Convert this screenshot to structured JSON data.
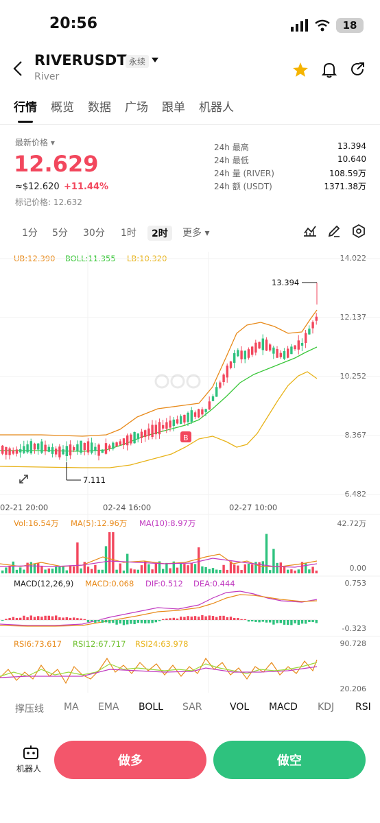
{
  "status": {
    "time": "20:56",
    "battery": "18"
  },
  "header": {
    "title": "RIVERUSDT",
    "tag": "永续",
    "subtitle": "River"
  },
  "tabs": [
    "行情",
    "概览",
    "数据",
    "广场",
    "跟单",
    "机器人"
  ],
  "price": {
    "label": "最新价格",
    "last": "12.629",
    "usd": "≈$12.620",
    "change": "+11.44%",
    "mark": "标记价格: 12.632"
  },
  "stats": [
    {
      "label": "24h  最高",
      "value": "13.394"
    },
    {
      "label": "24h  最低",
      "value": "10.640"
    },
    {
      "label": "24h  量 (RIVER)",
      "value": "108.59万"
    },
    {
      "label": "24h  额 (USDT)",
      "value": "1371.38万"
    }
  ],
  "timeframes": [
    "1分",
    "5分",
    "30分",
    "1时",
    "2时",
    "更多"
  ],
  "active_timeframe": "2时",
  "main_indicators": {
    "ub": "UB:12.390",
    "boll": "BOLL:11.355",
    "lb": "LB:10.320"
  },
  "price_axis": [
    "14.022",
    "12.137",
    "10.252",
    "8.367",
    "6.482"
  ],
  "high_marker": "13.394",
  "low_marker": "7.111",
  "buy_marker": "B",
  "date_labels": [
    "02-21 20:00",
    "02-24 16:00",
    "02-27 10:00"
  ],
  "vol_indicators": {
    "vol": "Vol:16.54万",
    "ma5": "MA(5):12.96万",
    "ma10": "MA(10):8.97万"
  },
  "vol_axis": [
    "42.72万",
    "0.00"
  ],
  "macd_indicators": {
    "params": "MACD(12,26,9)",
    "macd": "MACD:0.068",
    "dif": "DIF:0.512",
    "dea": "DEA:0.444"
  },
  "macd_axis": [
    "0.753",
    "-0.323"
  ],
  "rsi_indicators": {
    "rsi6": "RSI6:73.617",
    "rsi12": "RSI12:67.717",
    "rsi24": "RSI24:63.978"
  },
  "rsi_axis": [
    "90.728",
    "20.206"
  ],
  "indicator_tabs": [
    "撑压线",
    "MA",
    "EMA",
    "BOLL",
    "SAR",
    "VOL",
    "MACD",
    "KDJ",
    "RSI"
  ],
  "actions": {
    "robot": "机器人",
    "long": "做多",
    "short": "做空"
  },
  "colors": {
    "up": "#f2475d",
    "down": "#2ec27e",
    "accent": "#f5b400"
  }
}
